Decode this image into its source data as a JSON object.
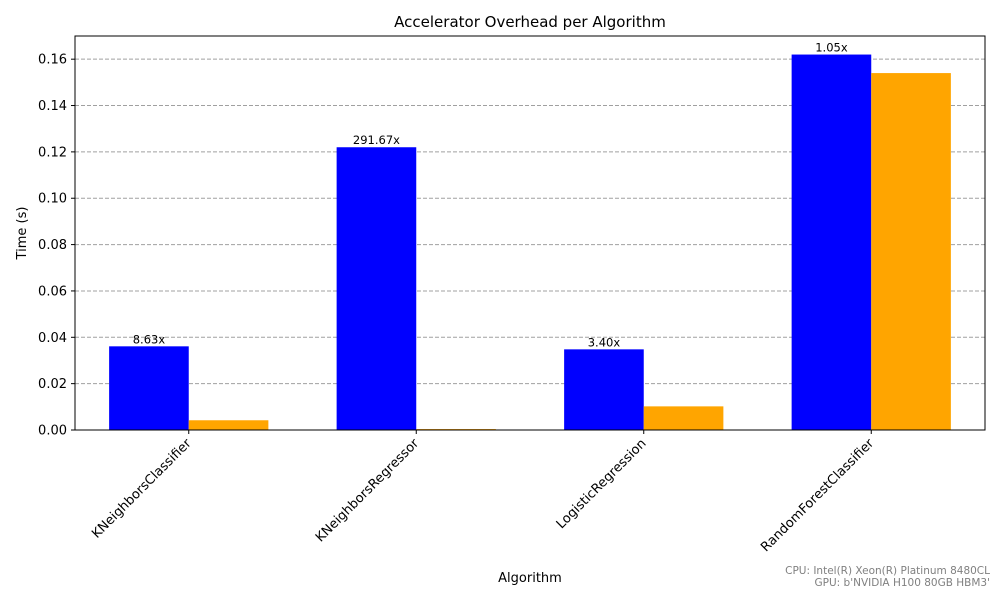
{
  "chart_data": {
    "type": "bar",
    "title": "Accelerator Overhead per Algorithm",
    "xlabel": "Algorithm",
    "ylabel": "Time (s)",
    "ylim": [
      0,
      0.17
    ],
    "yticks": [
      0.0,
      0.02,
      0.04,
      0.06,
      0.08,
      0.1,
      0.12,
      0.14,
      0.16
    ],
    "ytick_labels": [
      "0.00",
      "0.02",
      "0.04",
      "0.06",
      "0.08",
      "0.10",
      "0.12",
      "0.14",
      "0.16"
    ],
    "grid": "y-dashed",
    "categories": [
      "KNeighborsClassifier",
      "KNeighborsRegressor",
      "LogisticRegression",
      "RandomForestClassifier"
    ],
    "series": [
      {
        "color": "#0000ff",
        "values": [
          0.0361,
          0.122,
          0.0348,
          0.162
        ]
      },
      {
        "color": "#ffa500",
        "values": [
          0.0042,
          0.0004,
          0.0102,
          0.154
        ]
      }
    ],
    "bar_labels": [
      "8.63x",
      "291.67x",
      "3.40x",
      "1.05x"
    ]
  },
  "footer": {
    "cpu": "CPU: Intel(R) Xeon(R) Platinum 8480CL",
    "gpu": "GPU: b'NVIDIA H100 80GB HBM3'"
  }
}
